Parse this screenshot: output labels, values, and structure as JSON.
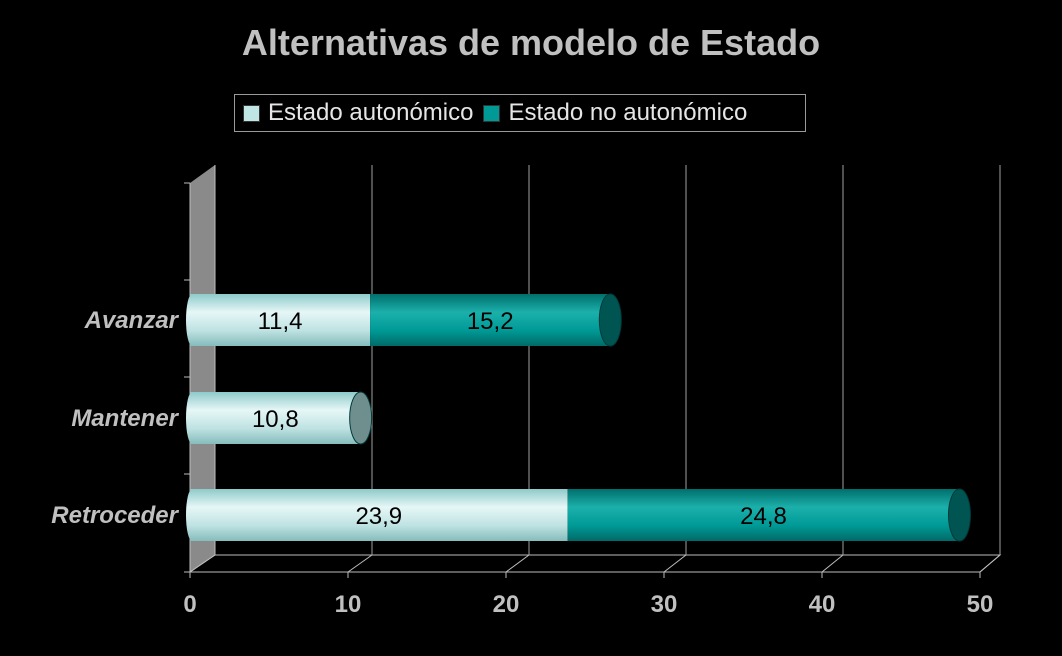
{
  "chart_data": {
    "type": "bar",
    "orientation": "horizontal",
    "stacked": true,
    "title": "Alternativas de modelo de Estado",
    "categories": [
      "Avanzar",
      "Mantener",
      "Retroceder"
    ],
    "series": [
      {
        "name": "Estado autonómico",
        "values": [
          11.4,
          10.8,
          23.9
        ],
        "labels": [
          "11,4",
          "10,8",
          "23,9"
        ],
        "color": "#bfe5e5"
      },
      {
        "name": "Estado no autonómico",
        "values": [
          15.2,
          null,
          24.8
        ],
        "labels": [
          "15,2",
          "",
          "24,8"
        ],
        "color": "#009a96"
      }
    ],
    "xlim": [
      0,
      50
    ],
    "xticks": [
      "0",
      "10",
      "20",
      "30",
      "40",
      "50"
    ],
    "grid": true,
    "legend_position": "top",
    "colors": {
      "background": "#000000",
      "axis_text": "#c0c0c0",
      "wall": "#8a8a8a"
    }
  }
}
